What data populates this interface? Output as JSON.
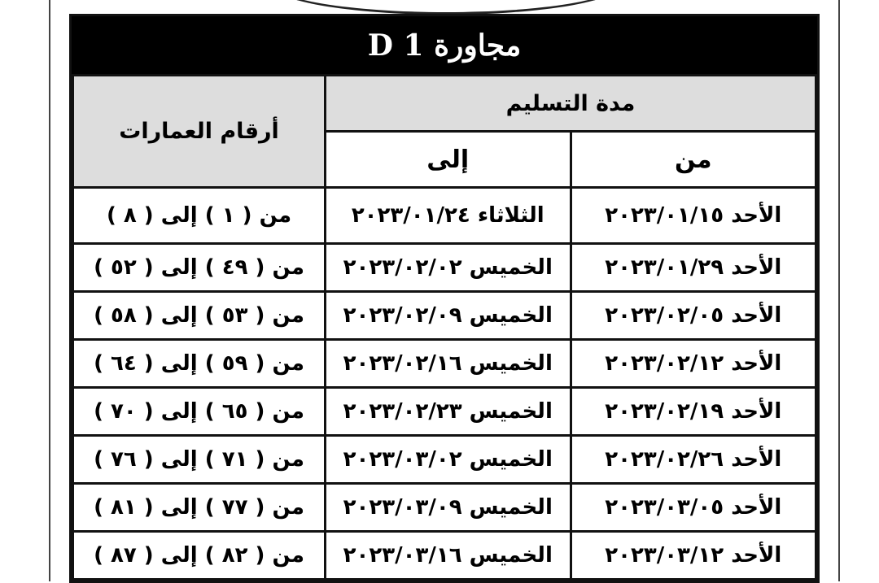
{
  "title": "مجاورة D 1",
  "headers": {
    "delivery_period": "مدة التسليم",
    "from": "من",
    "to": "إلى",
    "buildings": "أرقام العمارات"
  },
  "rows": [
    {
      "from": "الأحد ٢٠٢٣/٠١/١٥",
      "to": "الثلاثاء ٢٠٢٣/٠١/٢٤",
      "buildings": "من ( ١ ) إلى ( ٨ )"
    },
    {
      "from": "الأحد ٢٠٢٣/٠١/٢٩",
      "to": "الخميس ٢٠٢٣/٠٢/٠٢",
      "buildings": "من ( ٤٩ ) إلى ( ٥٢ )"
    },
    {
      "from": "الأحد ٢٠٢٣/٠٢/٠٥",
      "to": "الخميس ٢٠٢٣/٠٢/٠٩",
      "buildings": "من ( ٥٣ ) إلى ( ٥٨ )"
    },
    {
      "from": "الأحد ٢٠٢٣/٠٢/١٢",
      "to": "الخميس ٢٠٢٣/٠٢/١٦",
      "buildings": "من ( ٥٩ ) إلى ( ٦٤ )"
    },
    {
      "from": "الأحد ٢٠٢٣/٠٢/١٩",
      "to": "الخميس ٢٠٢٣/٠٢/٢٣",
      "buildings": "من ( ٦٥ ) إلى ( ٧٠ )"
    },
    {
      "from": "الأحد ٢٠٢٣/٠٢/٢٦",
      "to": "الخميس ٢٠٢٣/٠٣/٠٢",
      "buildings": "من ( ٧١ ) إلى ( ٧٦ )"
    },
    {
      "from": "الأحد ٢٠٢٣/٠٣/٠٥",
      "to": "الخميس ٢٠٢٣/٠٣/٠٩",
      "buildings": "من ( ٧٧ ) إلى ( ٨١ )"
    },
    {
      "from": "الأحد ٢٠٢٣/٠٣/١٢",
      "to": "الخميس ٢٠٢٣/٠٣/١٦",
      "buildings": "من ( ٨٢ ) إلى ( ٨٧ )"
    }
  ]
}
